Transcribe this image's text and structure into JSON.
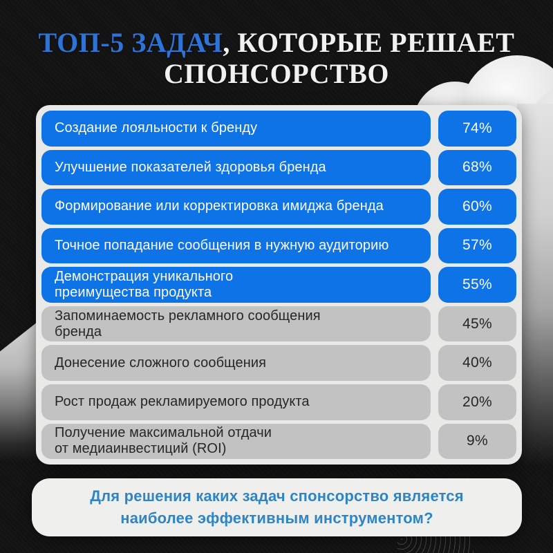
{
  "title": {
    "highlight": "ТОП-5 ЗАДАЧ",
    "rest": ", КОТОРЫЕ РЕШАЕТ",
    "line2": "СПОНСОРСТВО"
  },
  "table": {
    "rows": [
      {
        "label": "Создание лояльности к бренду",
        "value": "74%",
        "highlighted": true
      },
      {
        "label": "Улучшение показателей здоровья бренда",
        "value": "68%",
        "highlighted": true
      },
      {
        "label": "Формирование или корректировка имиджа бренда",
        "value": "60%",
        "highlighted": true
      },
      {
        "label": "Точное попадание сообщения в нужную аудиторию",
        "value": "57%",
        "highlighted": true
      },
      {
        "label": "Демонстрация уникального\nпреимущества продукта",
        "value": "55%",
        "highlighted": true
      },
      {
        "label": "Запоминаемость рекламного сообщения\nбренда",
        "value": "45%",
        "highlighted": false
      },
      {
        "label": "Донесение сложного сообщения",
        "value": "40%",
        "highlighted": false
      },
      {
        "label": "Рост продаж рекламируемого продукта",
        "value": "20%",
        "highlighted": false
      },
      {
        "label": "Получение максимальной отдачи\nот медиаинвестиций (ROI)",
        "value": "9%",
        "highlighted": false
      }
    ]
  },
  "footer": {
    "question": "Для решения каких задач спонсорство является\nнаиболее эффективным инструментом?"
  },
  "colors": {
    "accent_blue": "#0d73e6",
    "title_blue": "#2d74d9",
    "gray_row": "#c2c2c2",
    "card_bg": "#e9e9e7",
    "footer_text_blue": "#2e84c4",
    "background": "#131313"
  },
  "chart_data": {
    "type": "bar",
    "title": "ТОП-5 ЗАДАЧ, КОТОРЫЕ РЕШАЕТ СПОНСОРСТВО",
    "categories": [
      "Создание лояльности к бренду",
      "Улучшение показателей здоровья бренда",
      "Формирование или корректировка имиджа бренда",
      "Точное попадание сообщения в нужную аудиторию",
      "Демонстрация уникального преимущества продукта",
      "Запоминаемость рекламного сообщения бренда",
      "Донесение сложного сообщения",
      "Рост продаж рекламируемого продукта",
      "Получение максимальной отдачи от медиаинвестиций (ROI)"
    ],
    "values": [
      74,
      68,
      60,
      57,
      55,
      45,
      40,
      20,
      9
    ],
    "unit": "%",
    "highlighted_top_n": 5,
    "annotation": "Для решения каких задач спонсорство является наиболее эффективным инструментом?"
  }
}
